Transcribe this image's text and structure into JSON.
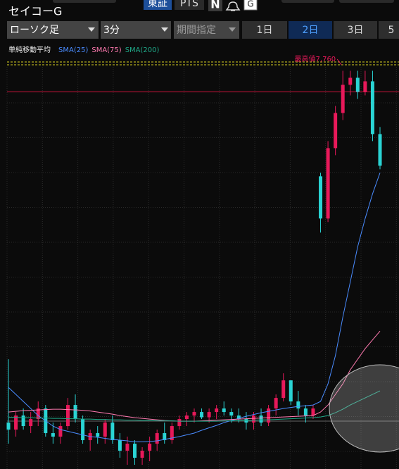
{
  "header": {
    "title": "セイコーG",
    "market": "東証",
    "pts": "PTS",
    "news": "N",
    "group": "G"
  },
  "toolbar": {
    "chart_kind": "ローソク足",
    "interval": "3分",
    "period": "期間指定",
    "tabs": [
      "1日",
      "2日",
      "3日",
      "5"
    ],
    "selected_tab": 1
  },
  "chart_data": {
    "type": "candlestick",
    "legend_title": "単純移動平均",
    "annotation": "最高値7,760",
    "ylim": [
      6630,
      7805
    ],
    "reference_line": 7700,
    "up_color": "#e8195a",
    "down_color": "#2ad4d4",
    "reference_color": "#d0143c",
    "open": [
      6760,
      6740,
      6780,
      6750,
      6770,
      6800,
      6730,
      6720,
      6750,
      6810,
      6770,
      6710,
      6730,
      6720,
      6760,
      6710,
      6680,
      6700,
      6660,
      6680,
      6700,
      6730,
      6710,
      6750,
      6770,
      6780,
      6790,
      6775,
      6790,
      6800,
      6790,
      6780,
      6770,
      6760,
      6780,
      6760,
      6800,
      6830,
      6880,
      6820,
      6800,
      6780,
      7460,
      7340,
      7540,
      7640,
      7720,
      7740,
      7700,
      7730,
      7580
    ],
    "high": [
      6940,
      6790,
      6800,
      6790,
      6820,
      6810,
      6760,
      6760,
      6830,
      6840,
      6780,
      6740,
      6750,
      6770,
      6780,
      6730,
      6720,
      6710,
      6690,
      6720,
      6740,
      6760,
      6760,
      6780,
      6790,
      6800,
      6800,
      6800,
      6810,
      6820,
      6800,
      6800,
      6790,
      6790,
      6800,
      6810,
      6840,
      6900,
      6880,
      6850,
      6810,
      6810,
      7470,
      7560,
      7660,
      7760,
      7760,
      7760,
      7760,
      7760,
      7600
    ],
    "low": [
      6700,
      6720,
      6740,
      6730,
      6750,
      6720,
      6700,
      6700,
      6740,
      6760,
      6700,
      6680,
      6700,
      6700,
      6700,
      6660,
      6640,
      6640,
      6640,
      6650,
      6680,
      6700,
      6700,
      6740,
      6750,
      6760,
      6770,
      6760,
      6770,
      6780,
      6760,
      6760,
      6740,
      6740,
      6750,
      6750,
      6780,
      6820,
      6810,
      6780,
      6760,
      6770,
      7300,
      7330,
      7520,
      7620,
      7690,
      7680,
      7690,
      7560,
      7480
    ],
    "close": [
      6740,
      6780,
      6750,
      6770,
      6800,
      6730,
      6720,
      6750,
      6810,
      6770,
      6710,
      6730,
      6720,
      6760,
      6710,
      6680,
      6700,
      6660,
      6680,
      6700,
      6730,
      6710,
      6750,
      6770,
      6780,
      6790,
      6775,
      6790,
      6800,
      6790,
      6780,
      6770,
      6760,
      6780,
      6760,
      6800,
      6830,
      6880,
      6820,
      6800,
      6780,
      6800,
      7340,
      7540,
      7640,
      7720,
      7740,
      7700,
      7730,
      7580,
      7490
    ],
    "series": [
      {
        "name": "SMA(25)",
        "color": "#4a8cff",
        "values": [
          6860,
          6840,
          6820,
          6800,
          6780,
          6765,
          6750,
          6740,
          6735,
          6730,
          6725,
          6720,
          6718,
          6715,
          6712,
          6710,
          6708,
          6705,
          6705,
          6706,
          6708,
          6712,
          6716,
          6720,
          6725,
          6730,
          6738,
          6745,
          6752,
          6760,
          6766,
          6772,
          6778,
          6783,
          6788,
          6792,
          6796,
          6800,
          6803,
          6806,
          6808,
          6810,
          6820,
          6870,
          6950,
          7060,
          7160,
          7260,
          7340,
          7410,
          7470
        ]
      },
      {
        "name": "SMA(75)",
        "color": "#ff7ab0",
        "values": [
          6790,
          6792,
          6794,
          6795,
          6796,
          6797,
          6798,
          6798,
          6797,
          6796,
          6795,
          6793,
          6790,
          6787,
          6784,
          6780,
          6777,
          6774,
          6772,
          6770,
          6768,
          6766,
          6765,
          6764,
          6764,
          6764,
          6765,
          6766,
          6767,
          6768,
          6769,
          6770,
          6771,
          6772,
          6773,
          6774,
          6775,
          6776,
          6777,
          6778,
          6779,
          6780,
          6790,
          6810,
          6840,
          6870,
          6910,
          6940,
          6970,
          6995,
          7020
        ]
      },
      {
        "name": "SMA(200)",
        "color": "#1fa888",
        "values": [
          6775,
          6775,
          6774,
          6774,
          6773,
          6773,
          6772,
          6772,
          6771,
          6771,
          6770,
          6770,
          6769,
          6769,
          6768,
          6768,
          6767,
          6767,
          6766,
          6766,
          6765,
          6765,
          6765,
          6764,
          6764,
          6764,
          6764,
          6764,
          6764,
          6765,
          6765,
          6766,
          6766,
          6767,
          6768,
          6768,
          6769,
          6770,
          6771,
          6772,
          6773,
          6774,
          6776,
          6780,
          6788,
          6798,
          6810,
          6820,
          6830,
          6840,
          6850
        ]
      }
    ]
  }
}
